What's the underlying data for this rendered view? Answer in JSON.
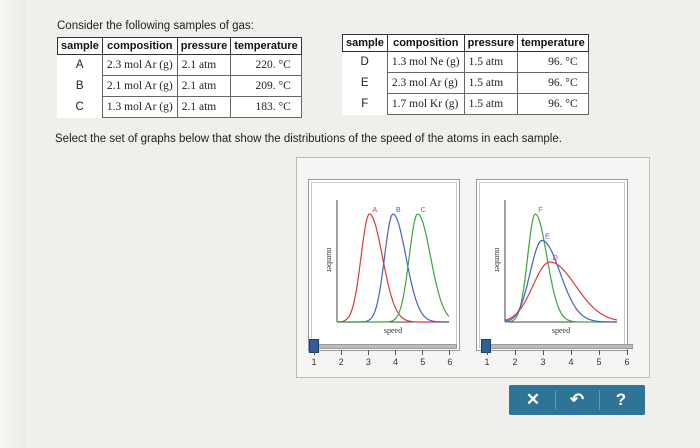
{
  "intro": "Consider the following samples of gas:",
  "table_headers": [
    "sample",
    "composition",
    "pressure",
    "temperature"
  ],
  "table_left": [
    {
      "sample": "A",
      "composition": "2.3 mol Ar (g)",
      "pressure": "2.1 atm",
      "temperature": "220. °C"
    },
    {
      "sample": "B",
      "composition": "2.1 mol Ar (g)",
      "pressure": "2.1 atm",
      "temperature": "209. °C"
    },
    {
      "sample": "C",
      "composition": "1.3 mol Ar (g)",
      "pressure": "2.1 atm",
      "temperature": "183. °C"
    }
  ],
  "table_right": [
    {
      "sample": "D",
      "composition": "1.3 mol Ne (g)",
      "pressure": "1.5 atm",
      "temperature": "96. °C"
    },
    {
      "sample": "E",
      "composition": "2.3 mol Ar (g)",
      "pressure": "1.5 atm",
      "temperature": "96. °C"
    },
    {
      "sample": "F",
      "composition": "1.7 mol Kr (g)",
      "pressure": "1.5 atm",
      "temperature": "96. °C"
    }
  ],
  "instruction": "Select the set of graphs below that show the distributions of the speed of the atoms in each sample.",
  "graph_left": {
    "ylabel": "number",
    "xlabel": "speed",
    "curves": [
      {
        "label": "A",
        "color": "#d83a3a",
        "peak_x": 0.29,
        "peak_h": 0.9,
        "width": 0.1
      },
      {
        "label": "B",
        "color": "#3f63c9",
        "peak_x": 0.5,
        "peak_h": 0.9,
        "width": 0.1
      },
      {
        "label": "C",
        "color": "#3aa83a",
        "peak_x": 0.72,
        "peak_h": 0.9,
        "width": 0.1
      }
    ]
  },
  "graph_right": {
    "ylabel": "number",
    "xlabel": "speed",
    "curves": [
      {
        "label": "F",
        "color": "#3aa83a",
        "peak_x": 0.27,
        "peak_h": 0.9,
        "width": 0.09
      },
      {
        "label": "E",
        "color": "#3f63c9",
        "peak_x": 0.33,
        "peak_h": 0.68,
        "width": 0.14
      },
      {
        "label": "D",
        "color": "#d83a3a",
        "peak_x": 0.4,
        "peak_h": 0.5,
        "width": 0.2
      }
    ]
  },
  "slider_left": {
    "ticks": [
      "1",
      "2",
      "3",
      "4",
      "5",
      "6"
    ],
    "value": 1
  },
  "slider_right": {
    "ticks": [
      "1",
      "2",
      "3",
      "4",
      "5",
      "6"
    ],
    "value": 1
  },
  "actions": {
    "clear": "✕",
    "undo": "↶",
    "help": "?"
  }
}
